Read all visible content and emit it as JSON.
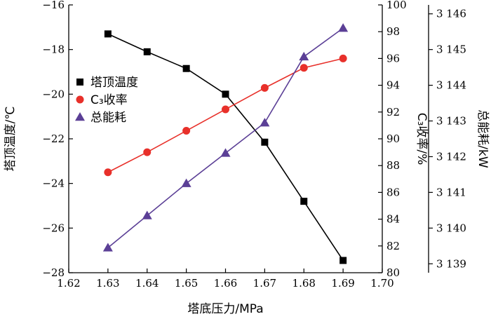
{
  "chart_data": {
    "type": "line",
    "xlabel": "塔底压力/MPa",
    "xlim": [
      1.62,
      1.7
    ],
    "xticks": [
      "1.62",
      "1.63",
      "1.64",
      "1.65",
      "1.66",
      "1.67",
      "1.68",
      "1.69",
      "1.70"
    ],
    "axes": {
      "left": {
        "label": "塔顶温度/℃",
        "lim": [
          -28,
          -16
        ],
        "ticks": [
          "−28",
          "−26",
          "−24",
          "−22",
          "−20",
          "−18",
          "−16"
        ]
      },
      "right1": {
        "label": "C₃收率/%",
        "lim": [
          80,
          100
        ],
        "ticks": [
          "80",
          "82",
          "84",
          "86",
          "88",
          "90",
          "92",
          "94",
          "96",
          "98",
          "100"
        ]
      },
      "right2": {
        "label": "总能耗/kW",
        "lim": [
          3138.75,
          3146.25
        ],
        "ticks": [
          "3 139",
          "3 140",
          "3 141",
          "3 142",
          "3 143",
          "3 144",
          "3 145",
          "3 146"
        ],
        "tick_values": [
          3139,
          3140,
          3141,
          3142,
          3143,
          3144,
          3145,
          3146
        ]
      }
    },
    "x": [
      1.63,
      1.64,
      1.65,
      1.66,
      1.67,
      1.68,
      1.69
    ],
    "series": [
      {
        "name": "塔顶温度",
        "axis": "left",
        "marker": "square",
        "color": "#000000",
        "values": [
          -17.3,
          -18.1,
          -18.85,
          -20.0,
          -22.15,
          -24.8,
          -27.45
        ]
      },
      {
        "name": "C₃收率",
        "axis": "right1",
        "marker": "circle",
        "color": "#e8302a",
        "values": [
          87.5,
          89.0,
          90.6,
          92.2,
          93.8,
          95.3,
          96.0
        ]
      },
      {
        "name": "总能耗",
        "axis": "right2",
        "marker": "triangle",
        "color": "#5b3f96",
        "values": [
          3139.45,
          3140.35,
          3141.25,
          3142.1,
          3142.95,
          3144.8,
          3145.6
        ]
      }
    ],
    "legend": {
      "position": "upper-left"
    }
  }
}
